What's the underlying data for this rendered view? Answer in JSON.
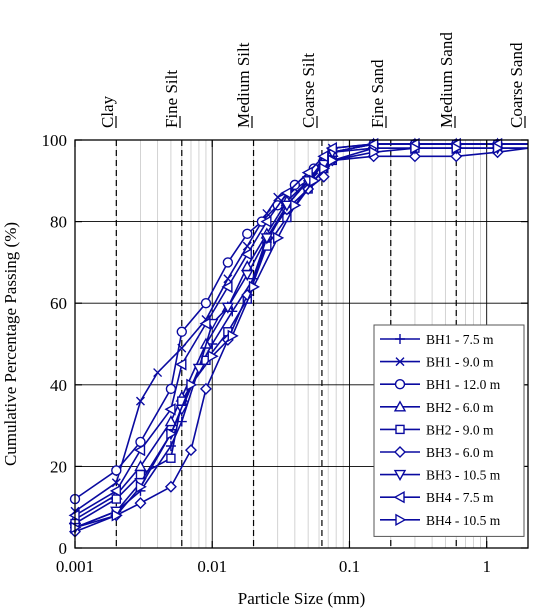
{
  "chart_data": {
    "type": "line",
    "xscale": "log",
    "xlim": [
      0.001,
      2
    ],
    "ylim": [
      0,
      100
    ],
    "xlabel": "Particle Size (mm)",
    "ylabel": "Cumulative Percentage Passing (%)",
    "xticks": [
      {
        "value": 0.001,
        "label": "0.001"
      },
      {
        "value": 0.01,
        "label": "0.01"
      },
      {
        "value": 0.1,
        "label": "0.1"
      },
      {
        "value": 1,
        "label": "1"
      }
    ],
    "yticks": [
      0,
      20,
      40,
      60,
      80,
      100
    ],
    "grid": true,
    "line_color": "#0a0aa0",
    "grid_color": "#c8c8c8",
    "legend_position": "lower-right",
    "size_classes": [
      {
        "label": "Clay",
        "boundary": 0.002
      },
      {
        "label": "Fine Silt",
        "boundary": 0.006
      },
      {
        "label": "Medium Silt",
        "boundary": 0.02
      },
      {
        "label": "Coarse Silt",
        "boundary": 0.063
      },
      {
        "label": "Fine Sand",
        "boundary": 0.2
      },
      {
        "label": "Medium Sand",
        "boundary": 0.6
      },
      {
        "label": "Coarse Sand",
        "boundary": null
      }
    ],
    "series": [
      {
        "name": "BH1 - 7.5 m",
        "marker": "plus",
        "x": [
          0.001,
          0.002,
          0.003,
          0.005,
          0.006,
          0.008,
          0.01,
          0.014,
          0.02,
          0.025,
          0.035,
          0.05,
          0.065,
          0.075,
          0.15,
          0.3,
          0.6,
          1.2,
          2
        ],
        "y": [
          5,
          9,
          14,
          25,
          31,
          44,
          50,
          58,
          66,
          75,
          84,
          90,
          95,
          97,
          99,
          99,
          99,
          99,
          99
        ]
      },
      {
        "name": "BH1 - 9.0 m",
        "marker": "x",
        "x": [
          0.001,
          0.002,
          0.003,
          0.004,
          0.006,
          0.009,
          0.013,
          0.018,
          0.025,
          0.03,
          0.04,
          0.055,
          0.065,
          0.075,
          0.15,
          0.3,
          0.6,
          1.2,
          2
        ],
        "y": [
          9,
          16,
          36,
          43,
          49,
          56,
          66,
          74,
          82,
          86,
          88,
          91,
          95,
          98,
          99,
          99,
          99,
          99,
          99
        ]
      },
      {
        "name": "BH1 - 12.0 m",
        "marker": "circle",
        "x": [
          0.001,
          0.002,
          0.003,
          0.005,
          0.006,
          0.009,
          0.013,
          0.018,
          0.023,
          0.03,
          0.04,
          0.055,
          0.065,
          0.075,
          0.15,
          0.3,
          0.6,
          1.2,
          2
        ],
        "y": [
          12,
          19,
          26,
          39,
          53,
          60,
          70,
          77,
          80,
          84,
          89,
          93,
          95,
          97,
          99,
          99,
          99,
          99,
          99
        ]
      },
      {
        "name": "BH2 - 6.0 m",
        "marker": "triangle-up",
        "x": [
          0.001,
          0.002,
          0.003,
          0.005,
          0.006,
          0.009,
          0.013,
          0.018,
          0.025,
          0.035,
          0.05,
          0.065,
          0.075,
          0.15,
          0.3,
          0.6,
          1.2,
          2
        ],
        "y": [
          7,
          13,
          20,
          31,
          37,
          50,
          59,
          69,
          77,
          85,
          90,
          95,
          97,
          99,
          99,
          99,
          99,
          99
        ]
      },
      {
        "name": "BH2 - 9.0 m",
        "marker": "square",
        "x": [
          0.001,
          0.002,
          0.003,
          0.005,
          0.006,
          0.009,
          0.013,
          0.018,
          0.025,
          0.035,
          0.05,
          0.065,
          0.075,
          0.15,
          0.3,
          0.6,
          1.2,
          2
        ],
        "y": [
          6,
          12,
          18,
          22,
          36,
          46,
          53,
          61,
          74,
          81,
          88,
          93,
          95,
          98,
          98,
          98,
          98,
          98
        ]
      },
      {
        "name": "BH3 - 6.0 m",
        "marker": "diamond",
        "x": [
          0.001,
          0.002,
          0.003,
          0.005,
          0.007,
          0.009,
          0.013,
          0.018,
          0.025,
          0.035,
          0.05,
          0.065,
          0.075,
          0.15,
          0.3,
          0.6,
          1.2,
          2
        ],
        "y": [
          4,
          8,
          11,
          15,
          24,
          39,
          51,
          62,
          76,
          83,
          88,
          91,
          95,
          96,
          96,
          96,
          97,
          98
        ]
      },
      {
        "name": "BH3 - 10.5 m",
        "marker": "triangle-down",
        "x": [
          0.001,
          0.002,
          0.003,
          0.005,
          0.006,
          0.008,
          0.01,
          0.013,
          0.018,
          0.025,
          0.035,
          0.05,
          0.065,
          0.075,
          0.15,
          0.3,
          0.6,
          1.2,
          2
        ],
        "y": [
          5,
          9,
          16,
          28,
          34,
          44,
          55,
          59,
          67,
          76,
          84,
          90,
          94,
          97,
          98,
          98,
          98,
          98,
          98
        ]
      },
      {
        "name": "BH4 - 7.5 m",
        "marker": "triangle-left",
        "x": [
          0.001,
          0.002,
          0.003,
          0.005,
          0.006,
          0.009,
          0.013,
          0.018,
          0.025,
          0.035,
          0.05,
          0.065,
          0.075,
          0.15,
          0.3,
          0.6,
          1.2,
          2
        ],
        "y": [
          8,
          14,
          24,
          34,
          45,
          55,
          64,
          72,
          80,
          87,
          92,
          96,
          98,
          99,
          99,
          99,
          99,
          99
        ]
      },
      {
        "name": "BH4 - 10.5 m",
        "marker": "triangle-right",
        "x": [
          0.001,
          0.002,
          0.003,
          0.005,
          0.007,
          0.01,
          0.014,
          0.02,
          0.03,
          0.04,
          0.055,
          0.065,
          0.075,
          0.15,
          0.3,
          0.6,
          1.2,
          2
        ],
        "y": [
          5,
          8,
          15,
          28,
          40,
          47,
          52,
          64,
          76,
          84,
          90,
          93,
          95,
          97,
          98,
          98,
          98,
          98
        ]
      }
    ]
  }
}
